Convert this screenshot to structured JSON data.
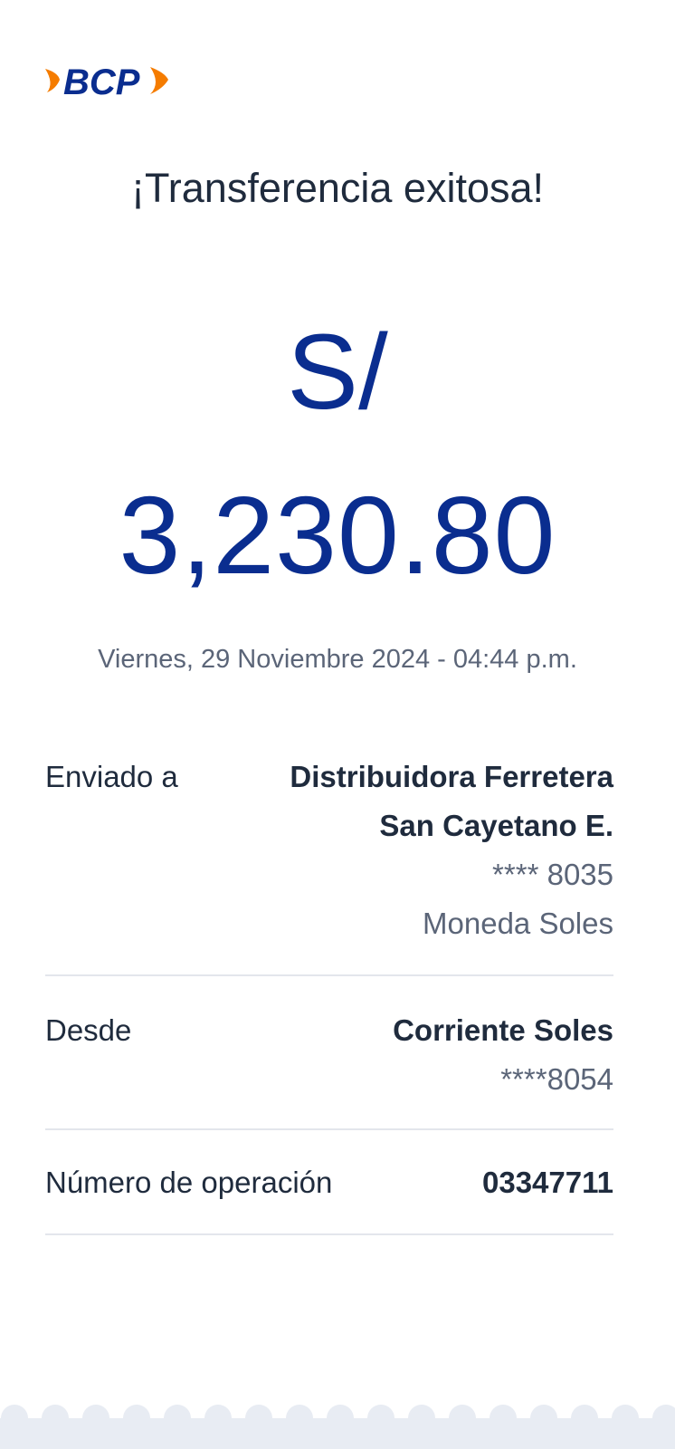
{
  "brand": {
    "logo_text": "BCP",
    "colors": {
      "blue": "#0a2d8f",
      "orange": "#f57c00"
    }
  },
  "title": "¡Transferencia exitosa!",
  "amount": {
    "currency": "S/",
    "value": "3,230.80"
  },
  "datetime": "Viernes, 29 Noviembre 2024 - 04:44 p.m.",
  "details": [
    {
      "label": "Enviado a",
      "name_line1": "Distribuidora Ferretera",
      "name_line2": "San Cayetano E.",
      "account": "**** 8035",
      "currency": "Moneda Soles"
    },
    {
      "label": "Desde",
      "name": "Corriente Soles",
      "account": "****8054"
    },
    {
      "label": "Número de operación",
      "value": "03347711"
    }
  ]
}
